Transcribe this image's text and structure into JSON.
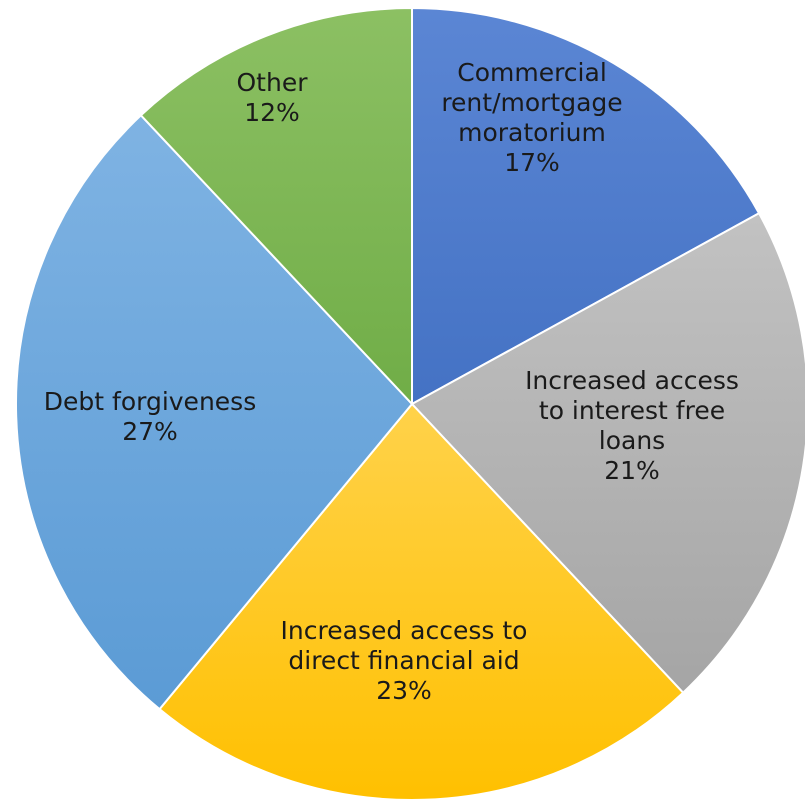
{
  "chart_data": {
    "type": "pie",
    "title": "",
    "start_angle_deg": 0,
    "direction": "clockwise",
    "slices": [
      {
        "lines": [
          "Commercial",
          "rent/mortgage",
          "moratorium",
          "17%"
        ],
        "value": 17,
        "color": "#4472c4",
        "color_light": "#5b86d4",
        "label_color": "#ffffff"
      },
      {
        "lines": [
          "Increased access",
          "to interest free",
          "loans",
          "21%"
        ],
        "value": 21,
        "color": "#a5a5a5",
        "color_light": "#c2c2c2",
        "label_color": "#1a1a1a"
      },
      {
        "lines": [
          "Increased access to",
          "direct financial aid",
          "23%"
        ],
        "value": 23,
        "color": "#ffc000",
        "color_light": "#ffd24a",
        "label_color": "#1a1a1a"
      },
      {
        "lines": [
          "Debt forgiveness",
          "27%"
        ],
        "value": 27,
        "color": "#5b9bd5",
        "color_light": "#7fb3e3",
        "label_color": "#1a1a1a"
      },
      {
        "lines": [
          "Other",
          "12%"
        ],
        "value": 12,
        "color": "#70ad47",
        "color_light": "#8cc063",
        "label_color": "#1a1a1a"
      }
    ]
  }
}
